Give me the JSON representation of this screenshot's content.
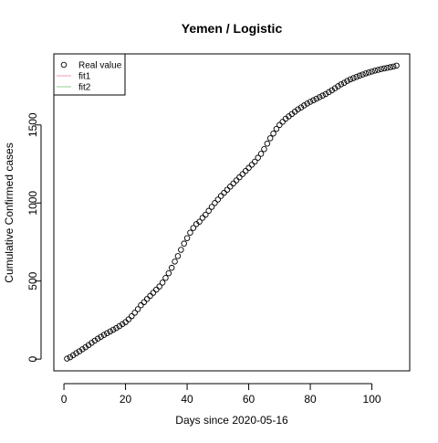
{
  "chart_data": {
    "type": "scatter",
    "title": "Yemen / Logistic",
    "xlabel": "Days since 2020-05-16",
    "ylabel": "Cumulative Confirmed cases",
    "xlim": [
      1,
      108
    ],
    "ylim": [
      0,
      1880
    ],
    "x_ticks": [
      0,
      20,
      40,
      60,
      80,
      100
    ],
    "y_ticks": [
      0,
      500,
      1000,
      1500
    ],
    "grid": false,
    "legend": {
      "position": "top-left",
      "entries": [
        {
          "label": "Real value",
          "symbol": "circle",
          "color": "#000000"
        },
        {
          "label": "fit1",
          "symbol": "line",
          "color": "#e8a0b0"
        },
        {
          "label": "fit2",
          "symbol": "line",
          "color": "#90d090"
        }
      ]
    },
    "series": [
      {
        "name": "Real value",
        "x": [
          1,
          2,
          3,
          4,
          5,
          6,
          7,
          8,
          9,
          10,
          11,
          12,
          13,
          14,
          15,
          16,
          17,
          18,
          19,
          20,
          21,
          22,
          23,
          24,
          25,
          26,
          27,
          28,
          29,
          30,
          31,
          32,
          33,
          34,
          35,
          36,
          37,
          38,
          39,
          40,
          41,
          42,
          43,
          44,
          45,
          46,
          47,
          48,
          49,
          50,
          51,
          52,
          53,
          54,
          55,
          56,
          57,
          58,
          59,
          60,
          61,
          62,
          63,
          64,
          65,
          66,
          67,
          68,
          69,
          70,
          71,
          72,
          73,
          74,
          75,
          76,
          77,
          78,
          79,
          80,
          81,
          82,
          83,
          84,
          85,
          86,
          87,
          88,
          89,
          90,
          91,
          92,
          93,
          94,
          95,
          96,
          97,
          98,
          99,
          100,
          101,
          102,
          103,
          104,
          105,
          106,
          107,
          108
        ],
        "y": [
          3,
          12,
          25,
          38,
          50,
          63,
          76,
          90,
          104,
          118,
          131,
          143,
          155,
          166,
          177,
          188,
          199,
          211,
          224,
          237,
          255,
          275,
          297,
          320,
          345,
          365,
          385,
          405,
          425,
          445,
          465,
          490,
          520,
          550,
          585,
          625,
          660,
          700,
          740,
          775,
          810,
          840,
          865,
          880,
          905,
          925,
          950,
          975,
          1000,
          1022,
          1045,
          1065,
          1085,
          1105,
          1125,
          1145,
          1165,
          1185,
          1205,
          1225,
          1245,
          1265,
          1290,
          1315,
          1345,
          1380,
          1415,
          1445,
          1475,
          1500,
          1520,
          1540,
          1555,
          1570,
          1585,
          1600,
          1612,
          1625,
          1637,
          1648,
          1658,
          1668,
          1678,
          1688,
          1698,
          1710,
          1722,
          1735,
          1748,
          1760,
          1770,
          1782,
          1792,
          1800,
          1808,
          1816,
          1823,
          1830,
          1836,
          1842,
          1848,
          1853,
          1858,
          1862,
          1866,
          1870,
          1874,
          1880
        ]
      }
    ]
  }
}
